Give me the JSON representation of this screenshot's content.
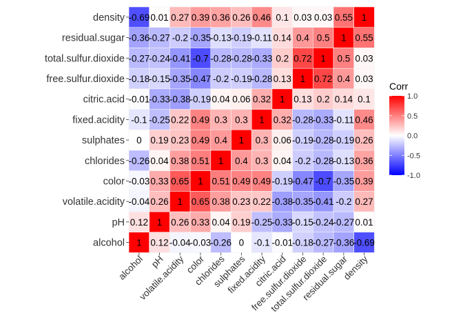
{
  "chart_data": {
    "type": "heatmap",
    "title": "",
    "xlabel": "",
    "ylabel": "",
    "variables": [
      "alcohol",
      "pH",
      "volatile.acidity",
      "color",
      "chlorides",
      "sulphates",
      "fixed.acidity",
      "citric.acid",
      "free.sulfur.dioxide",
      "total.sulfur.dioxide",
      "residual.sugar",
      "density"
    ],
    "matrix": [
      [
        1,
        0.12,
        -0.04,
        -0.03,
        -0.26,
        0,
        -0.1,
        -0.01,
        -0.18,
        -0.27,
        -0.36,
        -0.69
      ],
      [
        0.12,
        1,
        0.26,
        0.33,
        0.04,
        0.19,
        -0.25,
        -0.33,
        -0.15,
        -0.24,
        -0.27,
        0.01
      ],
      [
        -0.04,
        0.26,
        1,
        0.65,
        0.38,
        0.23,
        0.22,
        -0.38,
        -0.35,
        -0.41,
        -0.2,
        0.27
      ],
      [
        -0.03,
        0.33,
        0.65,
        1,
        0.51,
        0.49,
        0.49,
        -0.19,
        -0.47,
        -0.7,
        -0.35,
        0.39
      ],
      [
        -0.26,
        0.04,
        0.38,
        0.51,
        1,
        0.4,
        0.3,
        0.04,
        -0.2,
        -0.28,
        -0.13,
        0.36
      ],
      [
        0,
        0.19,
        0.23,
        0.49,
        0.4,
        1,
        0.3,
        0.06,
        -0.19,
        -0.28,
        -0.19,
        0.26
      ],
      [
        -0.1,
        -0.25,
        0.22,
        0.49,
        0.3,
        0.3,
        1,
        0.32,
        -0.28,
        -0.33,
        -0.11,
        0.46
      ],
      [
        -0.01,
        -0.33,
        -0.38,
        -0.19,
        0.04,
        0.06,
        0.32,
        1,
        0.13,
        0.2,
        0.14,
        0.1
      ],
      [
        -0.18,
        -0.15,
        -0.35,
        -0.47,
        -0.2,
        -0.19,
        -0.28,
        0.13,
        1,
        0.72,
        0.4,
        0.03
      ],
      [
        -0.27,
        -0.24,
        -0.41,
        -0.7,
        -0.28,
        -0.28,
        -0.33,
        0.2,
        0.72,
        1,
        0.5,
        0.03
      ],
      [
        -0.36,
        -0.27,
        -0.2,
        -0.35,
        -0.13,
        -0.19,
        -0.11,
        0.14,
        0.4,
        0.5,
        1,
        0.55
      ],
      [
        -0.69,
        0.01,
        0.27,
        0.39,
        0.36,
        0.26,
        0.46,
        0.1,
        0.03,
        0.03,
        0.55,
        1
      ]
    ],
    "value_range": [
      -1,
      1
    ],
    "legend": {
      "title": "Corr",
      "placement": "right",
      "ticks": [
        1.0,
        0.5,
        0.0,
        -0.5,
        -1.0
      ],
      "tick_labels": [
        "1.0",
        "0.5",
        "0.0",
        "-0.5",
        "-1.0"
      ]
    },
    "colors": {
      "low": "#0000ff",
      "mid": "#ffffff",
      "high": "#ff0000"
    }
  }
}
